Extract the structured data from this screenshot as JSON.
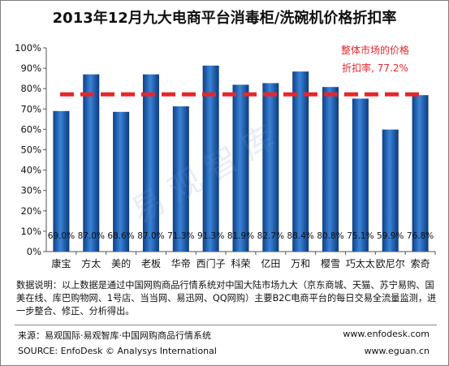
{
  "chart_data": {
    "type": "bar",
    "title": "2013年12月九大电商平台消毒柜/洗碗机价格折扣率",
    "categories": [
      "康宝",
      "方太",
      "美的",
      "老板",
      "华帝",
      "西门子",
      "科荣",
      "亿田",
      "万和",
      "樱雪",
      "巧太太",
      "欧尼尔",
      "索奇"
    ],
    "values": [
      69.0,
      87.0,
      68.6,
      87.0,
      71.3,
      91.3,
      81.9,
      82.7,
      88.4,
      80.8,
      75.1,
      59.9,
      76.8
    ],
    "value_labels": [
      "69.0%",
      "87.0%",
      "68.6%",
      "87.0%",
      "71.3%",
      "91.3%",
      "81.9%",
      "82.7%",
      "88.4%",
      "80.8%",
      "75.1%",
      "59.9%",
      "76.8%"
    ],
    "ylim": [
      0,
      100
    ],
    "yticks": [
      "0%",
      "10%",
      "20%",
      "30%",
      "40%",
      "50%",
      "60%",
      "70%",
      "80%",
      "90%",
      "100%"
    ],
    "reference_line": {
      "value": 77.2,
      "label_line1": "整体市场的价格",
      "label_line2": "折扣率, 77.2%",
      "color": "#e8262a"
    },
    "bar_color": "#1f64b8",
    "grid": false
  },
  "watermark": "易观智库",
  "note": "数据说明：以上数据是通过中国网购商品行情系统对中国大陆市场九大（京东商城、天猫、苏宁易购、国美在线、库巴购物网、1号店、当当网、易迅网、QQ网购）主要B2C电商平台的每日交易全流量监测，进一步整合、修正、分析得出。",
  "source_cn": "来源：易观国际·易观智库·中国网购商品行情系统",
  "source_en": "SOURCE: EnfoDesk © Analysys International",
  "website_1": "www.enfodesk.com",
  "website_2": "www.eguan.cn"
}
